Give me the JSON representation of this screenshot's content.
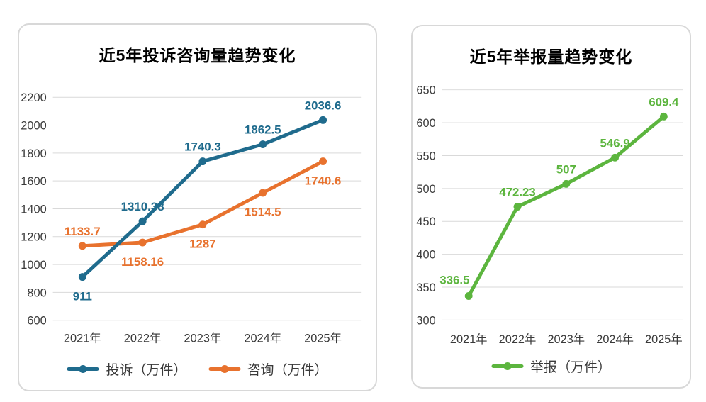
{
  "page": {
    "background_color": "#ffffff",
    "grid_color": "#d9d9d9",
    "card_border_color": "#d8d8d8",
    "text_color": "#3a3a3a"
  },
  "chart_data": [
    {
      "type": "line",
      "title": "近5年投诉咨询量趋势变化",
      "categories": [
        "2021年",
        "2022年",
        "2023年",
        "2024年",
        "2025年"
      ],
      "series": [
        {
          "name": "投诉（万件）",
          "color": "#1f6b8d",
          "values": [
            911,
            1310.38,
            1740.3,
            1862.5,
            2036.6
          ],
          "label_placement": [
            "below",
            "above",
            "above",
            "above",
            "above"
          ]
        },
        {
          "name": "咨询（万件）",
          "color": "#e8722e",
          "values": [
            1133.7,
            1158.16,
            1287,
            1514.5,
            1740.6
          ],
          "label_placement": [
            "above",
            "below",
            "below",
            "below",
            "below"
          ]
        }
      ],
      "ylim": [
        600,
        2200
      ],
      "ytick_step": 200,
      "grid": true,
      "legend_position": "bottom",
      "data_labels": true
    },
    {
      "type": "line",
      "title": "近5年举报量趋势变化",
      "categories": [
        "2021年",
        "2022年",
        "2023年",
        "2024年",
        "2025年"
      ],
      "series": [
        {
          "name": "举报（万件）",
          "color": "#5cb53e",
          "values": [
            336.5,
            472.23,
            507,
            546.9,
            609.4
          ],
          "label_placement": [
            "above-left",
            "above",
            "above",
            "above",
            "above"
          ]
        }
      ],
      "ylim": [
        300,
        650
      ],
      "ytick_step": 50,
      "grid": true,
      "legend_position": "bottom",
      "data_labels": true
    }
  ]
}
